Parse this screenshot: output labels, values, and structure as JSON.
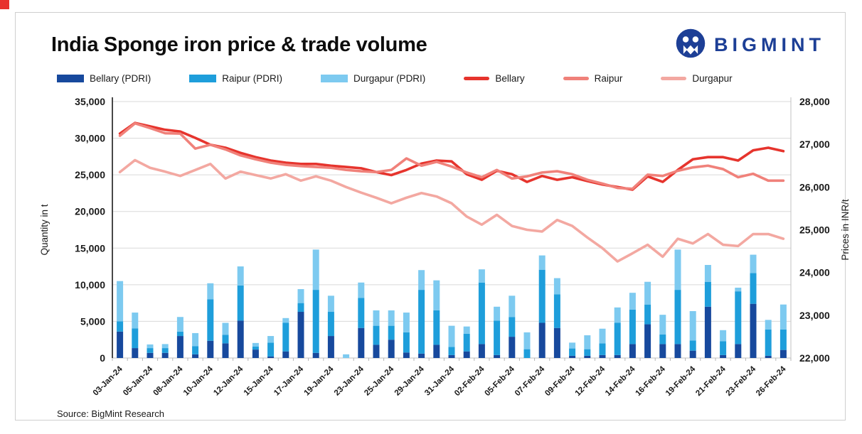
{
  "page": {
    "corner_accent_color": "#e8312e"
  },
  "header": {
    "title": "India Sponge iron price & trade volume",
    "logo_text": "BIGMINT",
    "logo_color": "#1d3f96"
  },
  "legend": {
    "items": [
      {
        "label": "Bellary (PDRI)",
        "type": "bar",
        "color": "#17499d"
      },
      {
        "label": "Raipur (PDRI)",
        "type": "bar",
        "color": "#1e9edb"
      },
      {
        "label": "Durgapur (PDRI)",
        "type": "bar",
        "color": "#7dcaf0"
      },
      {
        "label": "Bellary",
        "type": "line",
        "color": "#e6342d"
      },
      {
        "label": "Raipur",
        "type": "line",
        "color": "#f0817a"
      },
      {
        "label": "Durgapur",
        "type": "line",
        "color": "#f3a8a1"
      }
    ]
  },
  "chart_data": {
    "type": "combo-stacked-bar-line",
    "categories": [
      "03-Jan-24",
      "04-Jan-24",
      "05-Jan-24",
      "06-Jan-24",
      "08-Jan-24",
      "09-Jan-24",
      "10-Jan-24",
      "11-Jan-24",
      "12-Jan-24",
      "13-Jan-24",
      "15-Jan-24",
      "16-Jan-24",
      "17-Jan-24",
      "18-Jan-24",
      "19-Jan-24",
      "20-Jan-24",
      "23-Jan-24",
      "24-Jan-24",
      "25-Jan-24",
      "27-Jan-24",
      "29-Jan-24",
      "30-Jan-24",
      "31-Jan-24",
      "01-Feb-24",
      "02-Feb-24",
      "03-Feb-24",
      "05-Feb-24",
      "06-Feb-24",
      "07-Feb-24",
      "08-Feb-24",
      "09-Feb-24",
      "10-Feb-24",
      "12-Feb-24",
      "13-Feb-24",
      "14-Feb-24",
      "15-Feb-24",
      "16-Feb-24",
      "17-Feb-24",
      "19-Feb-24",
      "20-Feb-24",
      "21-Feb-24",
      "22-Feb-24",
      "23-Feb-24",
      "24-Feb-24",
      "26-Feb-24"
    ],
    "x_label_every": 2,
    "bar_series": [
      {
        "name": "Bellary (PDRI)",
        "axis": "left",
        "color": "#17499d",
        "values": [
          3600,
          1350,
          700,
          700,
          3000,
          500,
          2350,
          2000,
          5100,
          1150,
          200,
          900,
          6300,
          700,
          3000,
          0,
          4100,
          1800,
          2500,
          750,
          600,
          1800,
          400,
          900,
          1900,
          400,
          2900,
          0,
          4800,
          4100,
          300,
          300,
          400,
          400,
          1900,
          4600,
          1900,
          1900,
          1000,
          7000,
          400,
          1900,
          7400,
          300,
          1100
        ]
      },
      {
        "name": "Raipur (PDRI)",
        "axis": "left",
        "color": "#1e9edb",
        "values": [
          1400,
          2700,
          650,
          650,
          600,
          1100,
          5650,
          1150,
          4800,
          400,
          1900,
          3900,
          1200,
          8600,
          3300,
          0,
          4100,
          2600,
          1900,
          2750,
          8700,
          4700,
          1100,
          2400,
          8400,
          4700,
          2700,
          1200,
          7250,
          4600,
          1000,
          900,
          1600,
          4400,
          4700,
          2700,
          1300,
          7400,
          1400,
          3400,
          1900,
          7200,
          4200,
          3600,
          2800
        ]
      },
      {
        "name": "Durgapur (PDRI)",
        "axis": "left",
        "color": "#7dcaf0",
        "values": [
          5500,
          2150,
          500,
          550,
          2000,
          1800,
          2200,
          1650,
          2600,
          500,
          900,
          650,
          1900,
          5500,
          2200,
          500,
          2100,
          2100,
          2100,
          2700,
          2700,
          4100,
          2900,
          1000,
          1800,
          1900,
          2900,
          2300,
          1950,
          2200,
          800,
          1900,
          2000,
          2100,
          2300,
          3100,
          2700,
          5500,
          4000,
          2300,
          1500,
          500,
          2500,
          1300,
          3400
        ]
      }
    ],
    "line_series": [
      {
        "name": "Bellary",
        "axis": "right",
        "color": "#e6342d",
        "values": [
          27250,
          27500,
          27420,
          27340,
          27300,
          27150,
          26990,
          26920,
          26800,
          26700,
          26620,
          26570,
          26540,
          26540,
          26500,
          26470,
          26440,
          26350,
          26280,
          26400,
          26550,
          26620,
          26600,
          26300,
          26170,
          26380,
          26300,
          26120,
          26260,
          26170,
          26230,
          26140,
          26060,
          26000,
          25940,
          26250,
          26120,
          26400,
          26650,
          26700,
          26700,
          26620,
          26860,
          26920,
          26840
        ]
      },
      {
        "name": "Raipur",
        "axis": "right",
        "color": "#f0817a",
        "values": [
          27200,
          27490,
          27380,
          27260,
          27250,
          26900,
          26990,
          26880,
          26740,
          26650,
          26570,
          26520,
          26490,
          26470,
          26450,
          26400,
          26370,
          26350,
          26400,
          26670,
          26500,
          26590,
          26480,
          26340,
          26230,
          26400,
          26200,
          26250,
          26340,
          26370,
          26300,
          26170,
          26080,
          25980,
          25960,
          26290,
          26260,
          26380,
          26460,
          26500,
          26420,
          26230,
          26310,
          26150,
          26150
        ]
      },
      {
        "name": "Durgapur",
        "axis": "right",
        "color": "#f3a8a1",
        "values": [
          26350,
          26630,
          26450,
          26360,
          26260,
          26400,
          26540,
          26200,
          26360,
          26280,
          26200,
          26300,
          26150,
          26250,
          26150,
          26000,
          25870,
          25750,
          25620,
          25750,
          25860,
          25780,
          25620,
          25310,
          25120,
          25350,
          25090,
          25000,
          24960,
          25230,
          25090,
          24820,
          24570,
          24260,
          24450,
          24650,
          24370,
          24790,
          24680,
          24900,
          24650,
          24620,
          24900,
          24900,
          24790
        ]
      }
    ],
    "left_axis": {
      "title": "Quantity in t",
      "min": 0,
      "max": 35000,
      "step": 5000
    },
    "right_axis": {
      "title": "Prices in INR/t",
      "min": 22000,
      "max": 28000,
      "step": 1000
    },
    "grid": true,
    "legend_position": "top"
  },
  "footer": {
    "source": "Source: BigMint Research"
  }
}
